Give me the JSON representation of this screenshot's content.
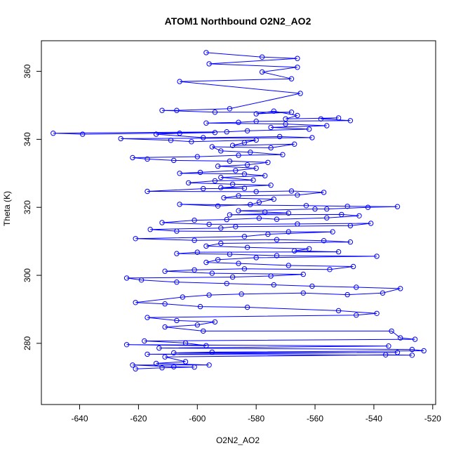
{
  "chart_data": {
    "type": "line",
    "title": "ATOM1 Northbound O2N2_AO2",
    "xlabel": "O2N2_AO2",
    "ylabel": "Theta (K)",
    "xlim": [
      -653,
      -519
    ],
    "ylim": [
      262,
      369
    ],
    "x_ticks": [
      -640,
      -620,
      -600,
      -580,
      -560,
      -540,
      -520
    ],
    "y_ticks": [
      280,
      300,
      320,
      340,
      360
    ],
    "grid": false,
    "legend": "none",
    "series_color": "#0000ff",
    "series": [
      {
        "style": "line+open-circle markers",
        "points": [
          [
            -597,
            365.5
          ],
          [
            -578,
            364.2
          ],
          [
            -566,
            363.8
          ],
          [
            -596,
            362.2
          ],
          [
            -566,
            361.2
          ],
          [
            -578,
            359.8
          ],
          [
            -568,
            357.8
          ],
          [
            -606,
            357
          ],
          [
            -565,
            353.5
          ],
          [
            -589,
            349
          ],
          [
            -607,
            348.5
          ],
          [
            -612,
            348.5
          ],
          [
            -594,
            348
          ],
          [
            -568,
            348
          ],
          [
            -580,
            347.5
          ],
          [
            -574,
            348.3
          ],
          [
            -566,
            347
          ],
          [
            -570,
            346
          ],
          [
            -552,
            346.3
          ],
          [
            -558,
            346
          ],
          [
            -548,
            345.5
          ],
          [
            -580,
            345.3
          ],
          [
            -586,
            345
          ],
          [
            -597,
            344.8
          ],
          [
            -570,
            344.5
          ],
          [
            -556,
            344
          ],
          [
            -575,
            343.5
          ],
          [
            -562,
            343
          ],
          [
            -583,
            342.5
          ],
          [
            -590,
            342.2
          ],
          [
            -649,
            341.8
          ],
          [
            -639,
            341.5
          ],
          [
            -594,
            342
          ],
          [
            -606,
            341.8
          ],
          [
            -614,
            341.5
          ],
          [
            -598,
            340.5
          ],
          [
            -572,
            340.8
          ],
          [
            -561,
            340.5
          ],
          [
            -626,
            340.2
          ],
          [
            -609,
            339.7
          ],
          [
            -602,
            339.3
          ],
          [
            -580,
            339.8
          ],
          [
            -584,
            339
          ],
          [
            -588,
            338.2
          ],
          [
            -567,
            338.6
          ],
          [
            -575,
            337.5
          ],
          [
            -595,
            337.8
          ],
          [
            -592,
            336.6
          ],
          [
            -582,
            336.2
          ],
          [
            -571,
            335.5
          ],
          [
            -586,
            335.3
          ],
          [
            -600,
            334.9
          ],
          [
            -622,
            334.6
          ],
          [
            -617,
            334.2
          ],
          [
            -608,
            333.8
          ],
          [
            -589,
            333.6
          ],
          [
            -576,
            333.2
          ],
          [
            -583,
            332.5
          ],
          [
            -593,
            332.1
          ],
          [
            -580,
            331.5
          ],
          [
            -587,
            330.8
          ],
          [
            -599,
            330.3
          ],
          [
            -606,
            330
          ],
          [
            -584,
            329.8
          ],
          [
            -577,
            329.3
          ],
          [
            -592,
            328.8
          ],
          [
            -581,
            328
          ],
          [
            -594,
            327.8
          ],
          [
            -603,
            327.2
          ],
          [
            -588,
            326.8
          ],
          [
            -575,
            326.5
          ],
          [
            -592,
            325.8
          ],
          [
            -584,
            325.6
          ],
          [
            -598,
            325.5
          ],
          [
            -617,
            324.7
          ],
          [
            -580,
            324.6
          ],
          [
            -568,
            324.8
          ],
          [
            -557,
            324.4
          ],
          [
            -566,
            323.6
          ],
          [
            -586,
            323.4
          ],
          [
            -591,
            322.8
          ],
          [
            -574,
            322.4
          ],
          [
            -579,
            321.5
          ],
          [
            -582,
            320.8
          ],
          [
            -593,
            320.4
          ],
          [
            -606,
            320.9
          ],
          [
            -563,
            320.5
          ],
          [
            -549,
            320.3
          ],
          [
            -532,
            320.2
          ],
          [
            -542,
            320
          ],
          [
            -556,
            319.5
          ],
          [
            -560,
            319.5
          ],
          [
            -586,
            319
          ],
          [
            -577,
            318.6
          ],
          [
            -569,
            318.3
          ],
          [
            -589,
            317.8
          ],
          [
            -551,
            317.9
          ],
          [
            -545,
            317.5
          ],
          [
            -556,
            316.9
          ],
          [
            -573,
            316.5
          ],
          [
            -579,
            316.8
          ],
          [
            -590,
            316.4
          ],
          [
            -601,
            316.2
          ],
          [
            -612,
            315.5
          ],
          [
            -596,
            315
          ],
          [
            -566,
            315.1
          ],
          [
            -541,
            315.3
          ],
          [
            -548,
            314.6
          ],
          [
            -587,
            314.3
          ],
          [
            -592,
            313.9
          ],
          [
            -616,
            313.5
          ],
          [
            -607,
            313
          ],
          [
            -569,
            312.8
          ],
          [
            -554,
            312.8
          ],
          [
            -576,
            312.1
          ],
          [
            -584,
            311.4
          ],
          [
            -621,
            310.8
          ],
          [
            -601,
            310.3
          ],
          [
            -573,
            310.5
          ],
          [
            -557,
            310.2
          ],
          [
            -548,
            309.8
          ],
          [
            -592,
            309.4
          ],
          [
            -597,
            308.6
          ],
          [
            -583,
            308.2
          ],
          [
            -562,
            307.8
          ],
          [
            -567,
            307.2
          ],
          [
            -552,
            306.9
          ],
          [
            -600,
            306.8
          ],
          [
            -607,
            306.4
          ],
          [
            -589,
            306.2
          ],
          [
            -573,
            305.8
          ],
          [
            -539,
            305.6
          ],
          [
            -580,
            305.2
          ],
          [
            -593,
            304.6
          ],
          [
            -597,
            303.8
          ],
          [
            -586,
            303.5
          ],
          [
            -569,
            302.9
          ],
          [
            -547,
            302.6
          ],
          [
            -555,
            301.7
          ],
          [
            -584,
            301.9
          ],
          [
            -601,
            301.6
          ],
          [
            -611,
            301.2
          ],
          [
            -595,
            300.6
          ],
          [
            -564,
            300.3
          ],
          [
            -575,
            299.8
          ],
          [
            -588,
            299.5
          ],
          [
            -624,
            299.2
          ],
          [
            -619,
            298.6
          ],
          [
            -607,
            298
          ],
          [
            -590,
            297.6
          ],
          [
            -574,
            297.2
          ],
          [
            -561,
            296.8
          ],
          [
            -546,
            296.5
          ],
          [
            -531,
            296.1
          ],
          [
            -537,
            294.8
          ],
          [
            -549,
            294.3
          ],
          [
            -564,
            294.8
          ],
          [
            -585,
            294.5
          ],
          [
            -596,
            294.2
          ],
          [
            -605,
            293.6
          ],
          [
            -621,
            292
          ],
          [
            -611,
            291.6
          ],
          [
            -599,
            290.8
          ],
          [
            -583,
            290.6
          ],
          [
            -552,
            289.6
          ],
          [
            -539,
            288.8
          ],
          [
            -546,
            288.3
          ],
          [
            -617,
            287.6
          ],
          [
            -607,
            286.7
          ],
          [
            -594,
            286.3
          ],
          [
            -600,
            285.4
          ],
          [
            -611,
            284.8
          ],
          [
            -598,
            283.6
          ],
          [
            -534,
            283.6
          ],
          [
            -531,
            281.6
          ],
          [
            -526,
            281.2
          ],
          [
            -618,
            280.7
          ],
          [
            -604,
            280.1
          ],
          [
            -597,
            279.3
          ],
          [
            -624,
            279.6
          ],
          [
            -535,
            279.2
          ],
          [
            -613,
            278.6
          ],
          [
            -527,
            278.2
          ],
          [
            -523,
            277.8
          ],
          [
            -595,
            277.4
          ],
          [
            -608,
            277.2
          ],
          [
            -532,
            277.3
          ],
          [
            -617,
            276.8
          ],
          [
            -527,
            276.5
          ],
          [
            -536,
            276.6
          ],
          [
            -611,
            276
          ],
          [
            -604,
            274.6
          ],
          [
            -614,
            274.1
          ],
          [
            -596,
            273.6
          ],
          [
            -622,
            273.6
          ],
          [
            -608,
            273.1
          ],
          [
            -601,
            273
          ],
          [
            -612,
            272.8
          ],
          [
            -621,
            272.5
          ]
        ]
      }
    ]
  }
}
